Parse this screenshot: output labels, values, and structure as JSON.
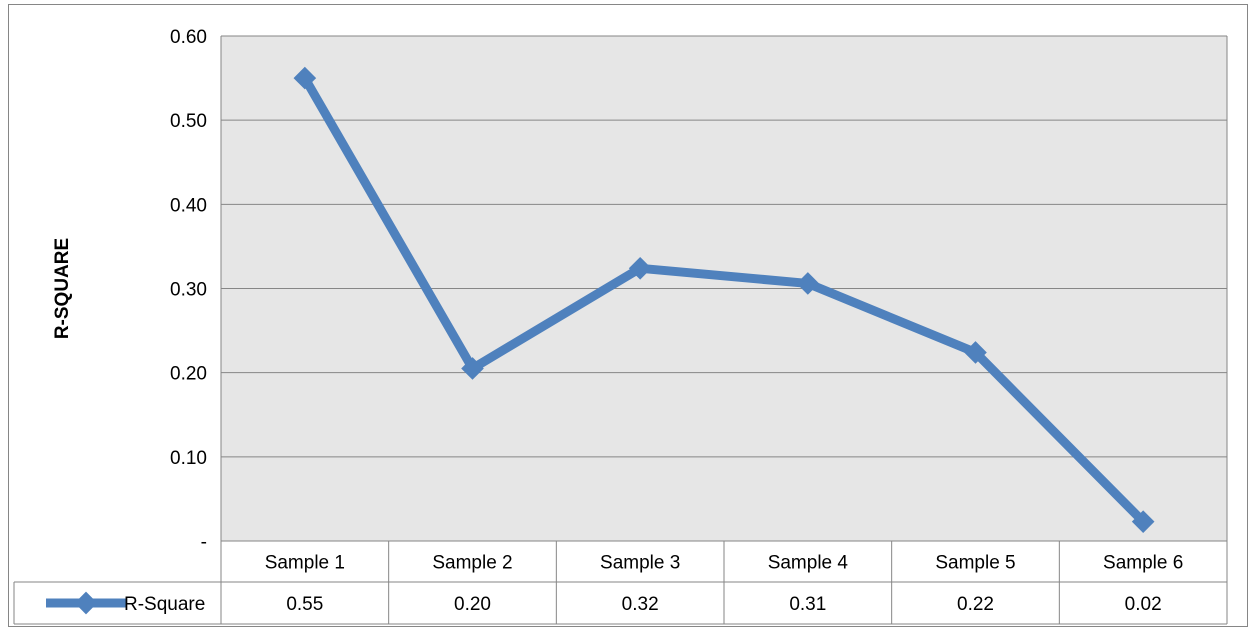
{
  "chart_data": {
    "type": "line",
    "title": "",
    "xlabel": "",
    "ylabel": "R-SQUARE",
    "categories": [
      "Sample 1",
      "Sample 2",
      "Sample 3",
      "Sample 4",
      "Sample 5",
      "Sample 6"
    ],
    "series": [
      {
        "name": "R-Square",
        "values": [
          0.55,
          0.205,
          0.324,
          0.306,
          0.224,
          0.023
        ],
        "table_values": [
          "0.55",
          "0.20",
          "0.32",
          "0.31",
          "0.22",
          "0.02"
        ]
      }
    ],
    "ylim": [
      0,
      0.6
    ],
    "yticks": [
      0,
      0.1,
      0.2,
      0.3,
      0.4,
      0.5,
      0.6
    ],
    "ytick_labels": [
      "-",
      "0.10",
      "0.20",
      "0.30",
      "0.40",
      "0.50",
      "0.60"
    ],
    "grid": true,
    "legend": "data-table",
    "colors": {
      "series": "#4f81bd",
      "plot_bg": "#e6e6e6",
      "grid": "#868686"
    }
  }
}
